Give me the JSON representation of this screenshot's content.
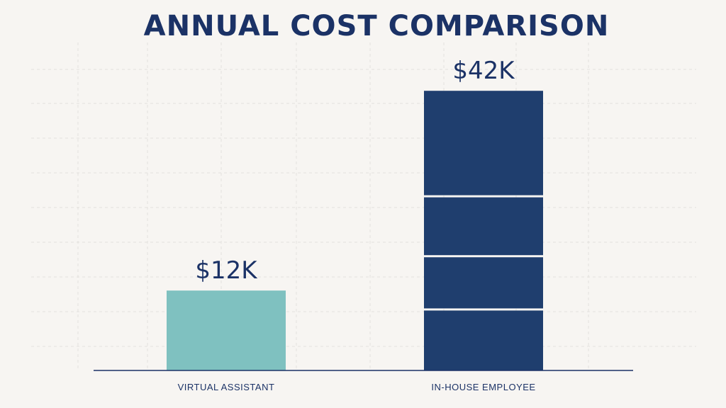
{
  "chart_data": {
    "type": "bar",
    "title": "ANNUAL COST COMPARISON",
    "categories": [
      "VIRTUAL ASSISTANT",
      "IN-HOUSE EMPLOYEE"
    ],
    "values": [
      12,
      42
    ],
    "value_labels": [
      "$12K",
      "$42K"
    ],
    "ylim": [
      0,
      50
    ],
    "grid": true,
    "legend": "none",
    "xlabel": "",
    "ylabel": "",
    "segments": [
      [
        12
      ],
      [
        9,
        8,
        9,
        16
      ]
    ],
    "colors": {
      "bars": [
        "#7fc1c0",
        "#1f3e6e"
      ],
      "title": "#1b3266",
      "axis": "#1b3266",
      "grid": "#e3e1dd",
      "background": "#f7f5f2"
    }
  }
}
